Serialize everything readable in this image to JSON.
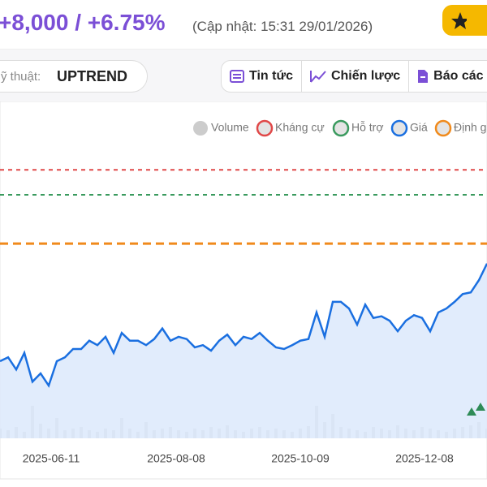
{
  "header": {
    "change": "+8,000 / +6.75%",
    "updated": "(Cập nhật: 15:31 29/01/2026)"
  },
  "toolbar": {
    "trend_label": "ỹ thuật:",
    "trend_value": "UPTREND",
    "tabs": [
      "Tin tức",
      "Chiến lược",
      "Báo các"
    ]
  },
  "chart_data": {
    "type": "line",
    "xlim": [
      0,
      60
    ],
    "xticks": [
      {
        "value": 6.3,
        "label": "2025-06-11"
      },
      {
        "value": 21.7,
        "label": "2025-08-08"
      },
      {
        "value": 37,
        "label": "2025-10-09"
      },
      {
        "value": 52.3,
        "label": "2025-12-08"
      }
    ],
    "ylim": [
      80000,
      140000
    ],
    "y2lim": [
      0,
      1500000
    ],
    "series": [
      {
        "name": "Volume",
        "color": "#cccccc",
        "axis": "y2",
        "values": [
          120000,
          100000,
          140000,
          80000,
          400000,
          180000,
          120000,
          250000,
          100000,
          120000,
          140000,
          100000,
          80000,
          120000,
          100000,
          250000,
          120000,
          80000,
          200000,
          100000,
          120000,
          140000,
          100000,
          80000,
          120000,
          100000,
          140000,
          120000,
          160000,
          100000,
          80000,
          120000,
          140000,
          100000,
          120000,
          100000,
          80000,
          120000,
          150000,
          400000,
          200000,
          300000,
          140000,
          120000,
          100000,
          80000,
          140000,
          120000,
          100000,
          160000,
          120000,
          100000,
          140000,
          120000,
          100000,
          80000,
          120000,
          140000,
          160000,
          200000,
          120000
        ]
      },
      {
        "name": "Kháng cự",
        "color": "#e04848",
        "value": 128400
      },
      {
        "name": "Hỗ trợ",
        "color": "#3a9a5e",
        "value": 123900
      },
      {
        "name": "Giá",
        "color": "#1a6fe0",
        "values": [
          93900,
          94600,
          92400,
          95400,
          90200,
          91700,
          89500,
          93900,
          94600,
          96100,
          96100,
          97600,
          96800,
          98300,
          95400,
          99000,
          97600,
          97600,
          96800,
          97900,
          99800,
          97600,
          98300,
          97900,
          96400,
          96800,
          95800,
          97600,
          98700,
          96800,
          98300,
          97900,
          99000,
          97600,
          96400,
          96100,
          96800,
          97600,
          97900,
          102700,
          98300,
          104600,
          104600,
          103400,
          100500,
          104100,
          101700,
          102000,
          101200,
          99300,
          101200,
          102200,
          101700,
          99300,
          102700,
          103400,
          104600,
          106000,
          106300,
          108500,
          111500
        ]
      },
      {
        "name": "Định g",
        "color": "#f08a1c",
        "value": 115100
      }
    ]
  }
}
